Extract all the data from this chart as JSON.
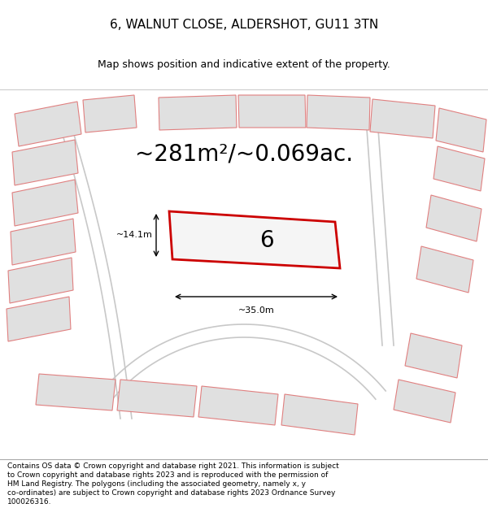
{
  "title": "6, WALNUT CLOSE, ALDERSHOT, GU11 3TN",
  "subtitle": "Map shows position and indicative extent of the property.",
  "area_text": "~281m²/~0.069ac.",
  "property_number": "6",
  "width_label": "~35.0m",
  "height_label": "~14.1m",
  "footer_lines": [
    "Contains OS data © Crown copyright and database right 2021. This information is subject",
    "to Crown copyright and database rights 2023 and is reproduced with the permission of",
    "HM Land Registry. The polygons (including the associated geometry, namely x, y",
    "co-ordinates) are subject to Crown copyright and database rights 2023 Ordnance Survey",
    "100026316."
  ],
  "map_bg": "#f5f5f5",
  "property_fill": "#f5f5f5",
  "property_edge": "#cc0000",
  "neighbor_fill": "#e0e0e0",
  "neighbor_edge": "#e08080",
  "road_color": "#c8c8c8",
  "title_fontsize": 11,
  "subtitle_fontsize": 9,
  "area_fontsize": 20,
  "label_fontsize": 8,
  "footer_fontsize": 6.5
}
